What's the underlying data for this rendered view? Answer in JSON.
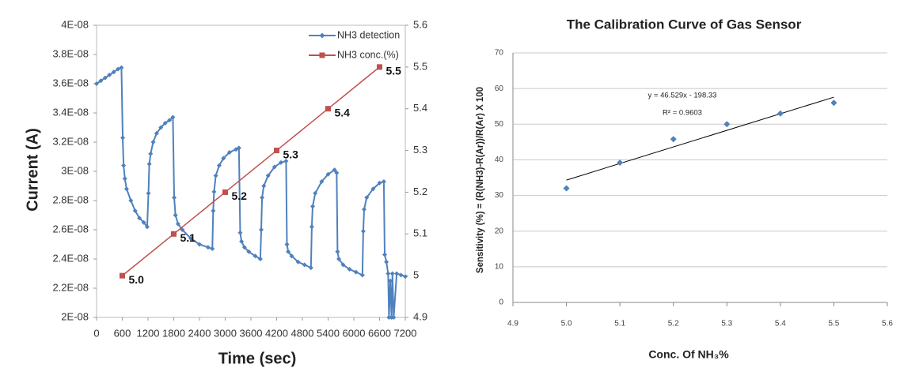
{
  "chart_data": [
    {
      "type": "line",
      "xlabel": "Time (sec)",
      "ylabel": "Current  (A)",
      "xlim": [
        0,
        7200
      ],
      "xticks": [
        0,
        600,
        1200,
        1800,
        2400,
        3000,
        3600,
        4200,
        4800,
        5400,
        6000,
        6600,
        7200
      ],
      "ylim": [
        2e-08,
        4e-08
      ],
      "yticks": [
        {
          "value": 2e-08,
          "label": "2E-08"
        },
        {
          "value": 2.2e-08,
          "label": "2.2E-08"
        },
        {
          "value": 2.4e-08,
          "label": "2.4E-08"
        },
        {
          "value": 2.6e-08,
          "label": "2.6E-08"
        },
        {
          "value": 2.8e-08,
          "label": "2.8E-08"
        },
        {
          "value": 3e-08,
          "label": "3E-08"
        },
        {
          "value": 3.2e-08,
          "label": "3.2E-08"
        },
        {
          "value": 3.4e-08,
          "label": "3.4E-08"
        },
        {
          "value": 3.6e-08,
          "label": "3.6E-08"
        },
        {
          "value": 3.8e-08,
          "label": "3.8E-08"
        },
        {
          "value": 4e-08,
          "label": "4E-08"
        }
      ],
      "y2lim": [
        4.9,
        5.6
      ],
      "y2ticks": [
        4.9,
        5,
        5.1,
        5.2,
        5.3,
        5.4,
        5.5,
        5.6
      ],
      "legend": "top-right",
      "series": [
        {
          "name": "NH3 detection",
          "color": "#4f81bd",
          "marker": "diamond",
          "x": [
            0,
            100,
            200,
            300,
            400,
            500,
            580,
            610,
            630,
            660,
            700,
            800,
            900,
            1000,
            1100,
            1180,
            1210,
            1230,
            1260,
            1320,
            1400,
            1500,
            1600,
            1700,
            1780,
            1810,
            1840,
            1900,
            2000,
            2200,
            2400,
            2600,
            2700,
            2720,
            2740,
            2780,
            2860,
            2960,
            3100,
            3250,
            3320,
            3350,
            3380,
            3450,
            3550,
            3700,
            3820,
            3840,
            3860,
            3900,
            4000,
            4150,
            4300,
            4420,
            4440,
            4470,
            4550,
            4700,
            4850,
            5000,
            5020,
            5040,
            5100,
            5250,
            5400,
            5550,
            5600,
            5620,
            5650,
            5750,
            5900,
            6050,
            6200,
            6220,
            6240,
            6300,
            6450,
            6600,
            6700,
            6720,
            6760,
            6800,
            6820,
            6850,
            6880,
            6900,
            6930,
            7000,
            7100,
            7200
          ],
          "values": [
            3.6e-08,
            3.62e-08,
            3.64e-08,
            3.66e-08,
            3.68e-08,
            3.7e-08,
            3.71e-08,
            3.23e-08,
            3.04e-08,
            2.95e-08,
            2.88e-08,
            2.8e-08,
            2.73e-08,
            2.68e-08,
            2.65e-08,
            2.62e-08,
            2.85e-08,
            3.05e-08,
            3.12e-08,
            3.2e-08,
            3.26e-08,
            3.3e-08,
            3.33e-08,
            3.35e-08,
            3.37e-08,
            2.82e-08,
            2.7e-08,
            2.64e-08,
            2.6e-08,
            2.54e-08,
            2.5e-08,
            2.48e-08,
            2.47e-08,
            2.73e-08,
            2.86e-08,
            2.97e-08,
            3.04e-08,
            3.09e-08,
            3.13e-08,
            3.15e-08,
            3.16e-08,
            2.58e-08,
            2.52e-08,
            2.48e-08,
            2.45e-08,
            2.42e-08,
            2.4e-08,
            2.6e-08,
            2.82e-08,
            2.9e-08,
            2.97e-08,
            3.03e-08,
            3.06e-08,
            3.07e-08,
            2.5e-08,
            2.45e-08,
            2.42e-08,
            2.38e-08,
            2.36e-08,
            2.34e-08,
            2.62e-08,
            2.76e-08,
            2.85e-08,
            2.93e-08,
            2.98e-08,
            3.01e-08,
            2.99e-08,
            2.45e-08,
            2.4e-08,
            2.36e-08,
            2.33e-08,
            2.31e-08,
            2.29e-08,
            2.59e-08,
            2.74e-08,
            2.82e-08,
            2.88e-08,
            2.92e-08,
            2.93e-08,
            2.43e-08,
            2.38e-08,
            2.3e-08,
            2e-08,
            2.25e-08,
            2e-08,
            2.3e-08,
            2e-08,
            2.3e-08,
            2.29e-08,
            2.28e-08
          ]
        },
        {
          "name": "NH3 conc.(%)",
          "color": "#c0504d",
          "marker": "square",
          "axis": "y2",
          "x": [
            600,
            1800,
            3000,
            4200,
            5400,
            6600
          ],
          "values": [
            5.0,
            5.1,
            5.2,
            5.3,
            5.4,
            5.5
          ],
          "value_labels": [
            "5.0",
            "5.1",
            "5.2",
            "5.3",
            "5.4",
            "5.5"
          ]
        }
      ]
    },
    {
      "type": "scatter",
      "title": "The Calibration Curve of Gas Sensor",
      "xlabel": "Conc. Of NH₃%",
      "ylabel": "Sensitivity (%) = (R(NH3)-R(Ar))/R(Ar) X 100",
      "xlim": [
        4.9,
        5.6
      ],
      "xticks": [
        4.9,
        {
          "value": 5,
          "label": "5.0"
        },
        5.1,
        5.2,
        5.3,
        5.4,
        5.5,
        5.6
      ],
      "ylim": [
        0,
        70
      ],
      "yticks": [
        0,
        10,
        20,
        30,
        40,
        50,
        60,
        70
      ],
      "grid": true,
      "series": [
        {
          "color": "#4f81bd",
          "marker": "diamond",
          "x": [
            5.0,
            5.1,
            5.2,
            5.3,
            5.4,
            5.5
          ],
          "values": [
            32,
            39.2,
            45.8,
            50,
            53,
            56
          ]
        }
      ],
      "trendline": {
        "slope": 46.529,
        "intercept": -198.33,
        "equation": "y = 46.529x - 198.33",
        "r_squared": "R² = 0.9603"
      }
    }
  ]
}
